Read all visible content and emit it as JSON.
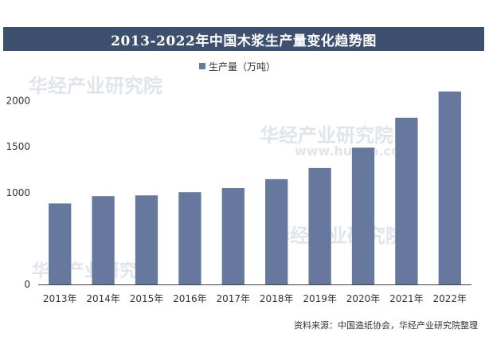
{
  "colors": {
    "title_bg": "#3d5070",
    "bar": "#66789d",
    "axis": "#444444"
  },
  "watermark": {
    "brand": "华经产业研究院",
    "url": "www.huaon.com"
  },
  "source_text": "资料来源：中国造纸协会，华经产业研究院整理",
  "chart_data": {
    "type": "bar",
    "title": "2013-2022年中国木浆生产量变化趋势图",
    "categories": [
      "2013年",
      "2014年",
      "2015年",
      "2016年",
      "2017年",
      "2018年",
      "2019年",
      "2020年",
      "2021年",
      "2022年"
    ],
    "series": [
      {
        "name": "生产量（万吨）",
        "values": [
          882,
          962,
          970,
          1005,
          1050,
          1147,
          1268,
          1490,
          1816,
          2102
        ]
      }
    ],
    "yticks": [
      0,
      1000,
      1500,
      2000
    ],
    "ylim": [
      0,
      2300
    ],
    "xlabel": "",
    "ylabel": "",
    "legend_position": "top-center",
    "grid": false
  }
}
